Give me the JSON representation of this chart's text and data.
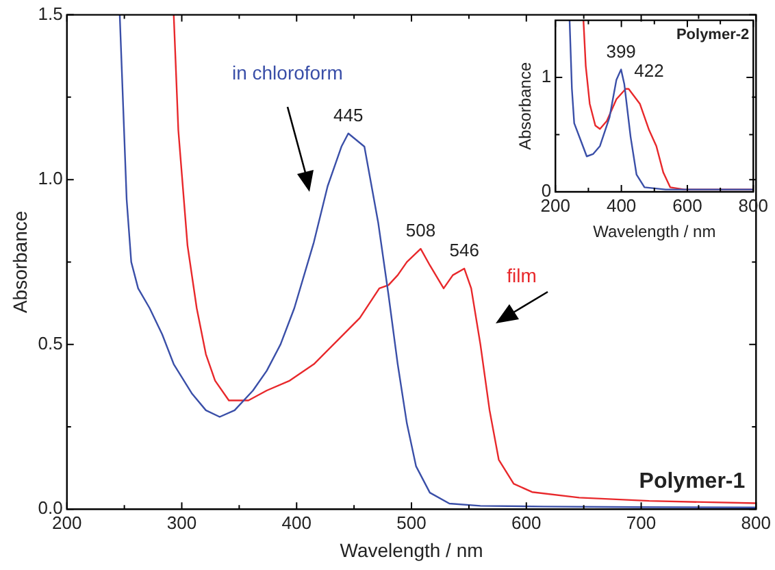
{
  "chart_data": [
    {
      "type": "line",
      "title": "Polymer-1",
      "xlabel": "Wavelength / nm",
      "ylabel": "Absorbance",
      "xlim": [
        200,
        800
      ],
      "ylim": [
        0,
        1.5
      ],
      "xticks": [
        200,
        {
          "value": 250,
          "label": null
        },
        300,
        {
          "value": 350,
          "label": null
        },
        400,
        {
          "value": 450,
          "label": null
        },
        500,
        {
          "value": 550,
          "label": null
        },
        600,
        {
          "value": 650,
          "label": null
        },
        700,
        {
          "value": 750,
          "label": null
        },
        800
      ],
      "yticks": [
        {
          "value": 0,
          "label": "0.0"
        },
        {
          "value": 0.25,
          "label": null
        },
        {
          "value": 0.5,
          "label": "0.5"
        },
        {
          "value": 0.75,
          "label": null
        },
        {
          "value": 1,
          "label": "1.0"
        },
        {
          "value": 1.25,
          "label": null
        },
        {
          "value": 1.5,
          "label": "1.5"
        }
      ],
      "grid": false,
      "legend": false,
      "series": [
        {
          "name": "in chloroform",
          "color": "#3a4fa8",
          "x": [
            246,
            252,
            256,
            262,
            272,
            283,
            293,
            309,
            321,
            333,
            346,
            362,
            374,
            386,
            398,
            415,
            427,
            439,
            445,
            459,
            471,
            480,
            488,
            496,
            504,
            516,
            533,
            560,
            615,
            700,
            800
          ],
          "values": [
            1.5,
            0.94,
            0.75,
            0.67,
            0.61,
            0.53,
            0.44,
            0.35,
            0.3,
            0.28,
            0.3,
            0.36,
            0.42,
            0.5,
            0.61,
            0.81,
            0.98,
            1.1,
            1.14,
            1.1,
            0.87,
            0.65,
            0.44,
            0.26,
            0.13,
            0.05,
            0.017,
            0.01,
            0.008,
            0.006,
            0.005
          ]
        },
        {
          "name": "film",
          "color": "#e8282b",
          "x": [
            293,
            297,
            305,
            313,
            321,
            329,
            341,
            358,
            374,
            394,
            415,
            435,
            455,
            472,
            480,
            488,
            496,
            508,
            516,
            528,
            536,
            546,
            552,
            560,
            568,
            576,
            589,
            605,
            646,
            707,
            800
          ],
          "values": [
            1.5,
            1.15,
            0.8,
            0.61,
            0.47,
            0.39,
            0.33,
            0.33,
            0.36,
            0.39,
            0.44,
            0.51,
            0.58,
            0.67,
            0.68,
            0.71,
            0.75,
            0.79,
            0.74,
            0.67,
            0.71,
            0.73,
            0.67,
            0.5,
            0.3,
            0.15,
            0.077,
            0.052,
            0.035,
            0.025,
            0.018
          ]
        }
      ],
      "annotations": [
        {
          "text": "445",
          "x": 445,
          "y": 1.14
        },
        {
          "text": "508",
          "x": 508,
          "y": 0.79
        },
        {
          "text": "546",
          "x": 546,
          "y": 0.73
        }
      ]
    },
    {
      "type": "line",
      "title": "Polymer-2",
      "xlabel": "Wavelength / nm",
      "ylabel": "Absorbance",
      "xlim": [
        200,
        800
      ],
      "ylim": [
        0,
        1.5
      ],
      "xticks": [
        200,
        {
          "value": 300,
          "label": null
        },
        400,
        {
          "value": 500,
          "label": null
        },
        600,
        {
          "value": 700,
          "label": null
        },
        800
      ],
      "yticks": [
        0,
        {
          "value": 0.5,
          "label": null
        },
        1
      ],
      "grid": false,
      "legend": false,
      "series": [
        {
          "color": "#3a4fa8",
          "x": [
            243,
            250,
            257,
            278,
            295,
            314,
            335,
            364,
            385,
            399,
            409,
            428,
            446,
            470,
            534,
            800
          ],
          "values": [
            1.5,
            0.9,
            0.6,
            0.44,
            0.31,
            0.33,
            0.4,
            0.65,
            0.98,
            1.07,
            0.94,
            0.48,
            0.15,
            0.04,
            0.02,
            0.02
          ]
        },
        {
          "color": "#e8282b",
          "x": [
            285,
            292,
            304,
            321,
            335,
            356,
            385,
            413,
            422,
            456,
            484,
            506,
            527,
            548,
            591,
            800
          ],
          "values": [
            1.5,
            1.1,
            0.77,
            0.58,
            0.55,
            0.62,
            0.81,
            0.9,
            0.9,
            0.77,
            0.54,
            0.4,
            0.17,
            0.04,
            0.02,
            0.02
          ]
        }
      ],
      "annotations": [
        {
          "text": "399",
          "x": 399,
          "y": 1.07
        },
        {
          "text": "422",
          "x": 422,
          "y": 0.9
        }
      ]
    }
  ]
}
